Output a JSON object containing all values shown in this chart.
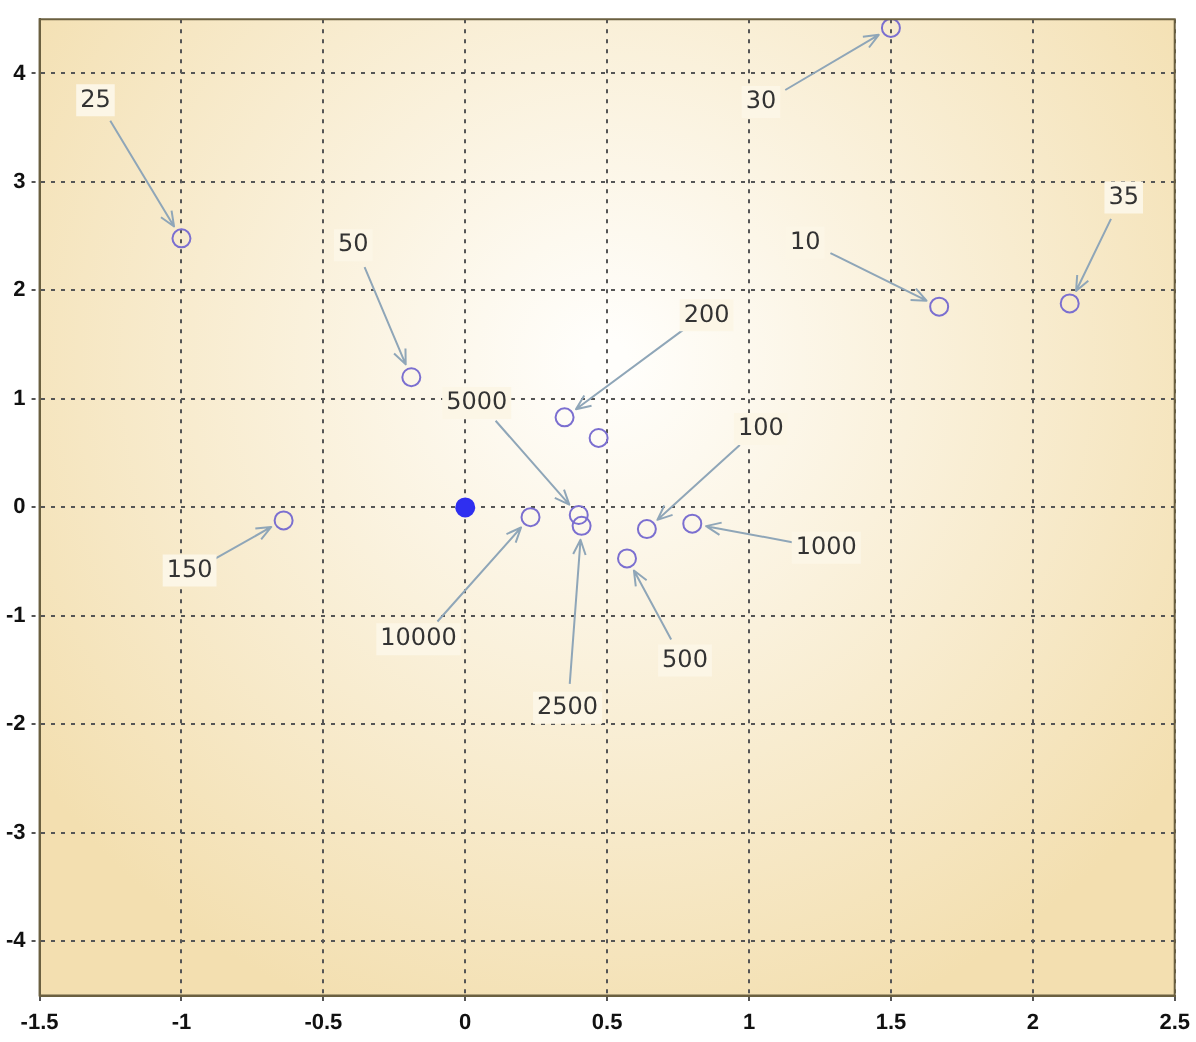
{
  "chart_data": {
    "type": "scatter",
    "xlim": [
      -1.5,
      2.5
    ],
    "ylim": [
      -4.5,
      4.5
    ],
    "xticks": [
      -1.5,
      -1,
      -0.5,
      0,
      0.5,
      1,
      1.5,
      2,
      2.5
    ],
    "yticks": [
      -4,
      -3,
      -2,
      -1,
      0,
      1,
      2,
      3,
      4
    ],
    "grid": true,
    "marker": "circle",
    "series": [
      {
        "color": "#7b6fd0",
        "x": [
          -1.0,
          -0.19,
          1.5,
          1.67,
          2.13,
          0.35,
          0.47,
          -0.64,
          0.23,
          0.4,
          0.41,
          0.57,
          0.64,
          0.8
        ],
        "values": [
          2.48,
          1.2,
          4.42,
          1.85,
          1.88,
          0.83,
          0.64,
          -0.12,
          -0.09,
          -0.07,
          -0.17,
          -0.47,
          -0.2,
          -0.15
        ]
      },
      {
        "color": "#2f2ff0",
        "x": [
          0
        ],
        "values": [
          0
        ]
      }
    ],
    "annotations": [
      {
        "text": "25",
        "x": -1.0,
        "y": 2.48
      },
      {
        "text": "50",
        "x": -0.19,
        "y": 1.2
      },
      {
        "text": "30",
        "x": 1.5,
        "y": 4.42
      },
      {
        "text": "10",
        "x": 1.67,
        "y": 1.85
      },
      {
        "text": "35",
        "x": 2.13,
        "y": 1.88
      },
      {
        "text": "200",
        "x": 0.35,
        "y": 0.83
      },
      {
        "text": "5000",
        "x": 0.4,
        "y": -0.07
      },
      {
        "text": "100",
        "x": 0.64,
        "y": -0.2
      },
      {
        "text": "1000",
        "x": 0.8,
        "y": -0.15
      },
      {
        "text": "500",
        "x": 0.57,
        "y": -0.47
      },
      {
        "text": "2500",
        "x": 0.41,
        "y": -0.17
      },
      {
        "text": "10000",
        "x": 0.23,
        "y": -0.09
      },
      {
        "text": "150",
        "x": -0.64,
        "y": -0.12
      }
    ]
  }
}
